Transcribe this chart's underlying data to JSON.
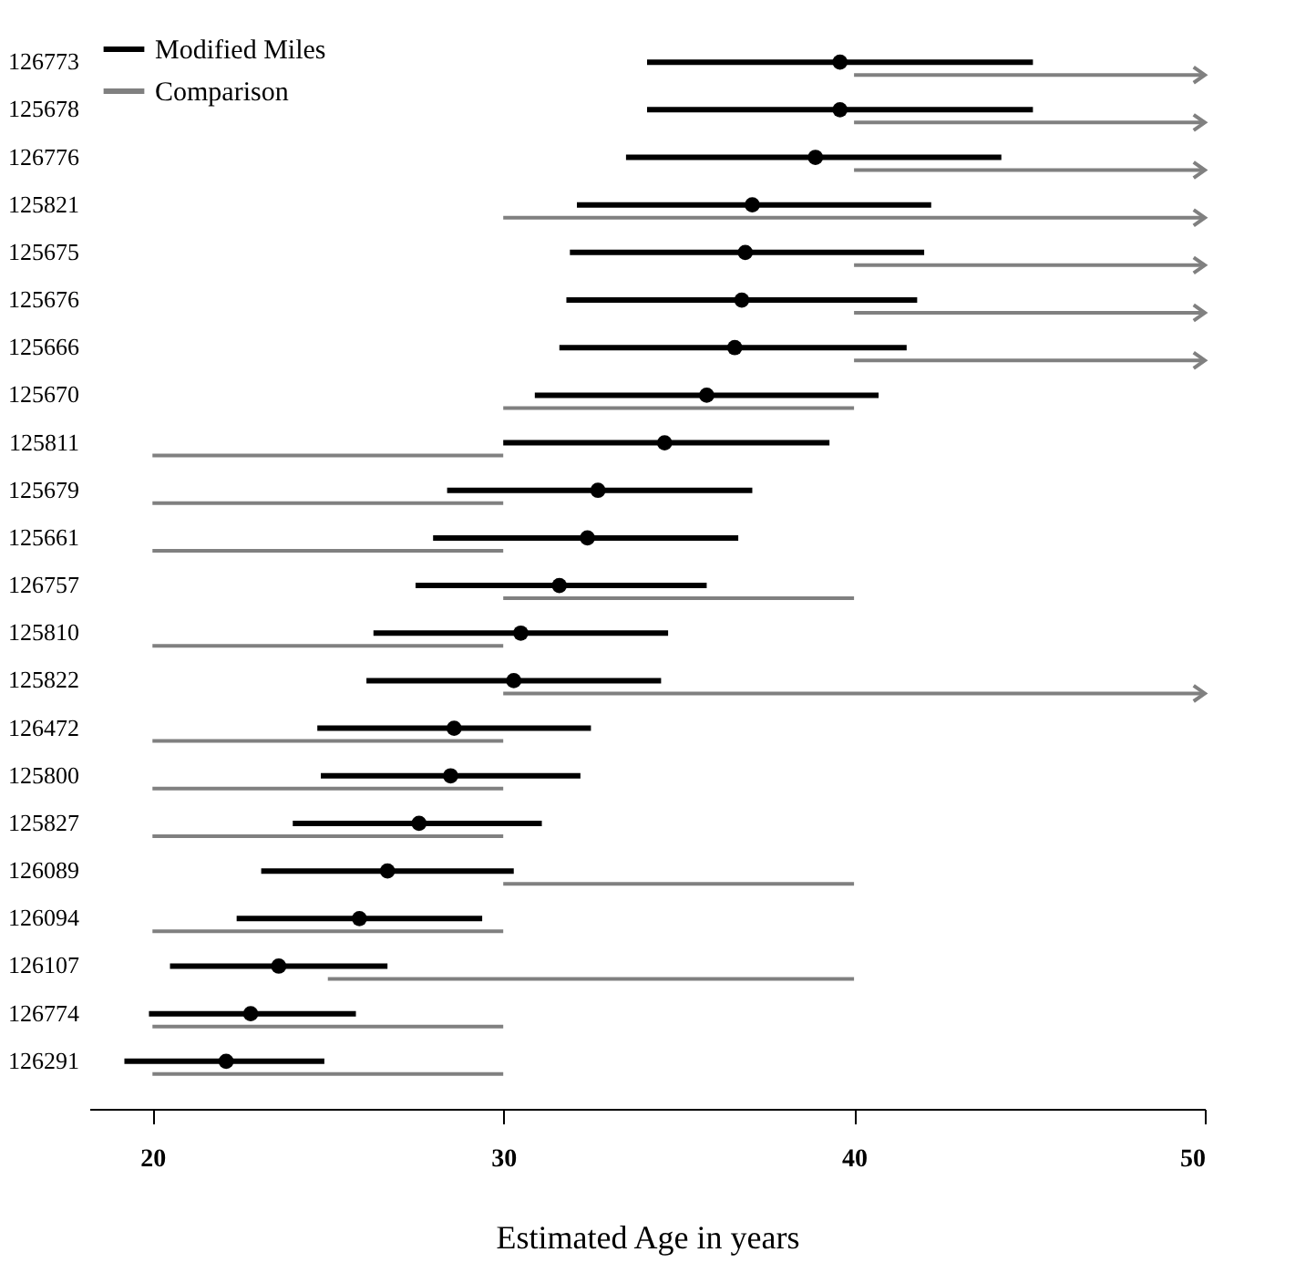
{
  "chart_data": {
    "type": "scatter",
    "orientation": "horizontal",
    "xlabel": "Estimated Age in years",
    "legend": "top left",
    "grid": false,
    "marker": "circle",
    "categories": [
      "126773",
      "125678",
      "126776",
      "125821",
      "125675",
      "125676",
      "125666",
      "125670",
      "125811",
      "125679",
      "125661",
      "126757",
      "125810",
      "125822",
      "126472",
      "125800",
      "125827",
      "126089",
      "126094",
      "126107",
      "126774",
      "126291"
    ],
    "xlim": [
      18.2,
      50
    ],
    "xticks": [
      20,
      30,
      40,
      50
    ],
    "series": [
      {
        "name": "Modified Miles",
        "color": "#000000",
        "values": [
          39.6,
          39.6,
          38.9,
          37.1,
          36.9,
          36.8,
          36.6,
          35.8,
          34.6,
          32.7,
          32.4,
          31.6,
          30.5,
          30.3,
          28.6,
          28.5,
          27.6,
          26.7,
          25.9,
          23.6,
          22.8,
          22.1
        ],
        "errors": [
          [
            34.1,
            45.1
          ],
          [
            34.1,
            45.1
          ],
          [
            33.5,
            44.2
          ],
          [
            32.1,
            42.2
          ],
          [
            31.9,
            42.0
          ],
          [
            31.8,
            41.8
          ],
          [
            31.6,
            41.5
          ],
          [
            30.9,
            40.7
          ],
          [
            30.0,
            39.3
          ],
          [
            28.4,
            37.1
          ],
          [
            28.0,
            36.7
          ],
          [
            27.5,
            35.8
          ],
          [
            26.3,
            34.7
          ],
          [
            26.1,
            34.5
          ],
          [
            24.7,
            32.5
          ],
          [
            24.8,
            32.2
          ],
          [
            24.0,
            31.1
          ],
          [
            23.1,
            30.3
          ],
          [
            22.4,
            29.4
          ],
          [
            20.5,
            26.7
          ],
          [
            19.9,
            25.8
          ],
          [
            19.2,
            24.9
          ]
        ]
      },
      {
        "name": "Comparison",
        "type": "bar",
        "color": "#808080",
        "base": [
          40,
          40,
          40,
          30,
          40,
          40,
          40,
          30,
          20,
          20,
          20,
          30,
          20,
          30,
          20,
          20,
          20,
          30,
          20,
          25,
          20,
          20
        ],
        "values": [
          10,
          10,
          10,
          20,
          10,
          10,
          10,
          10,
          10,
          10,
          10,
          10,
          10,
          20,
          10,
          10,
          10,
          10,
          10,
          15,
          10,
          10
        ]
      }
    ]
  }
}
